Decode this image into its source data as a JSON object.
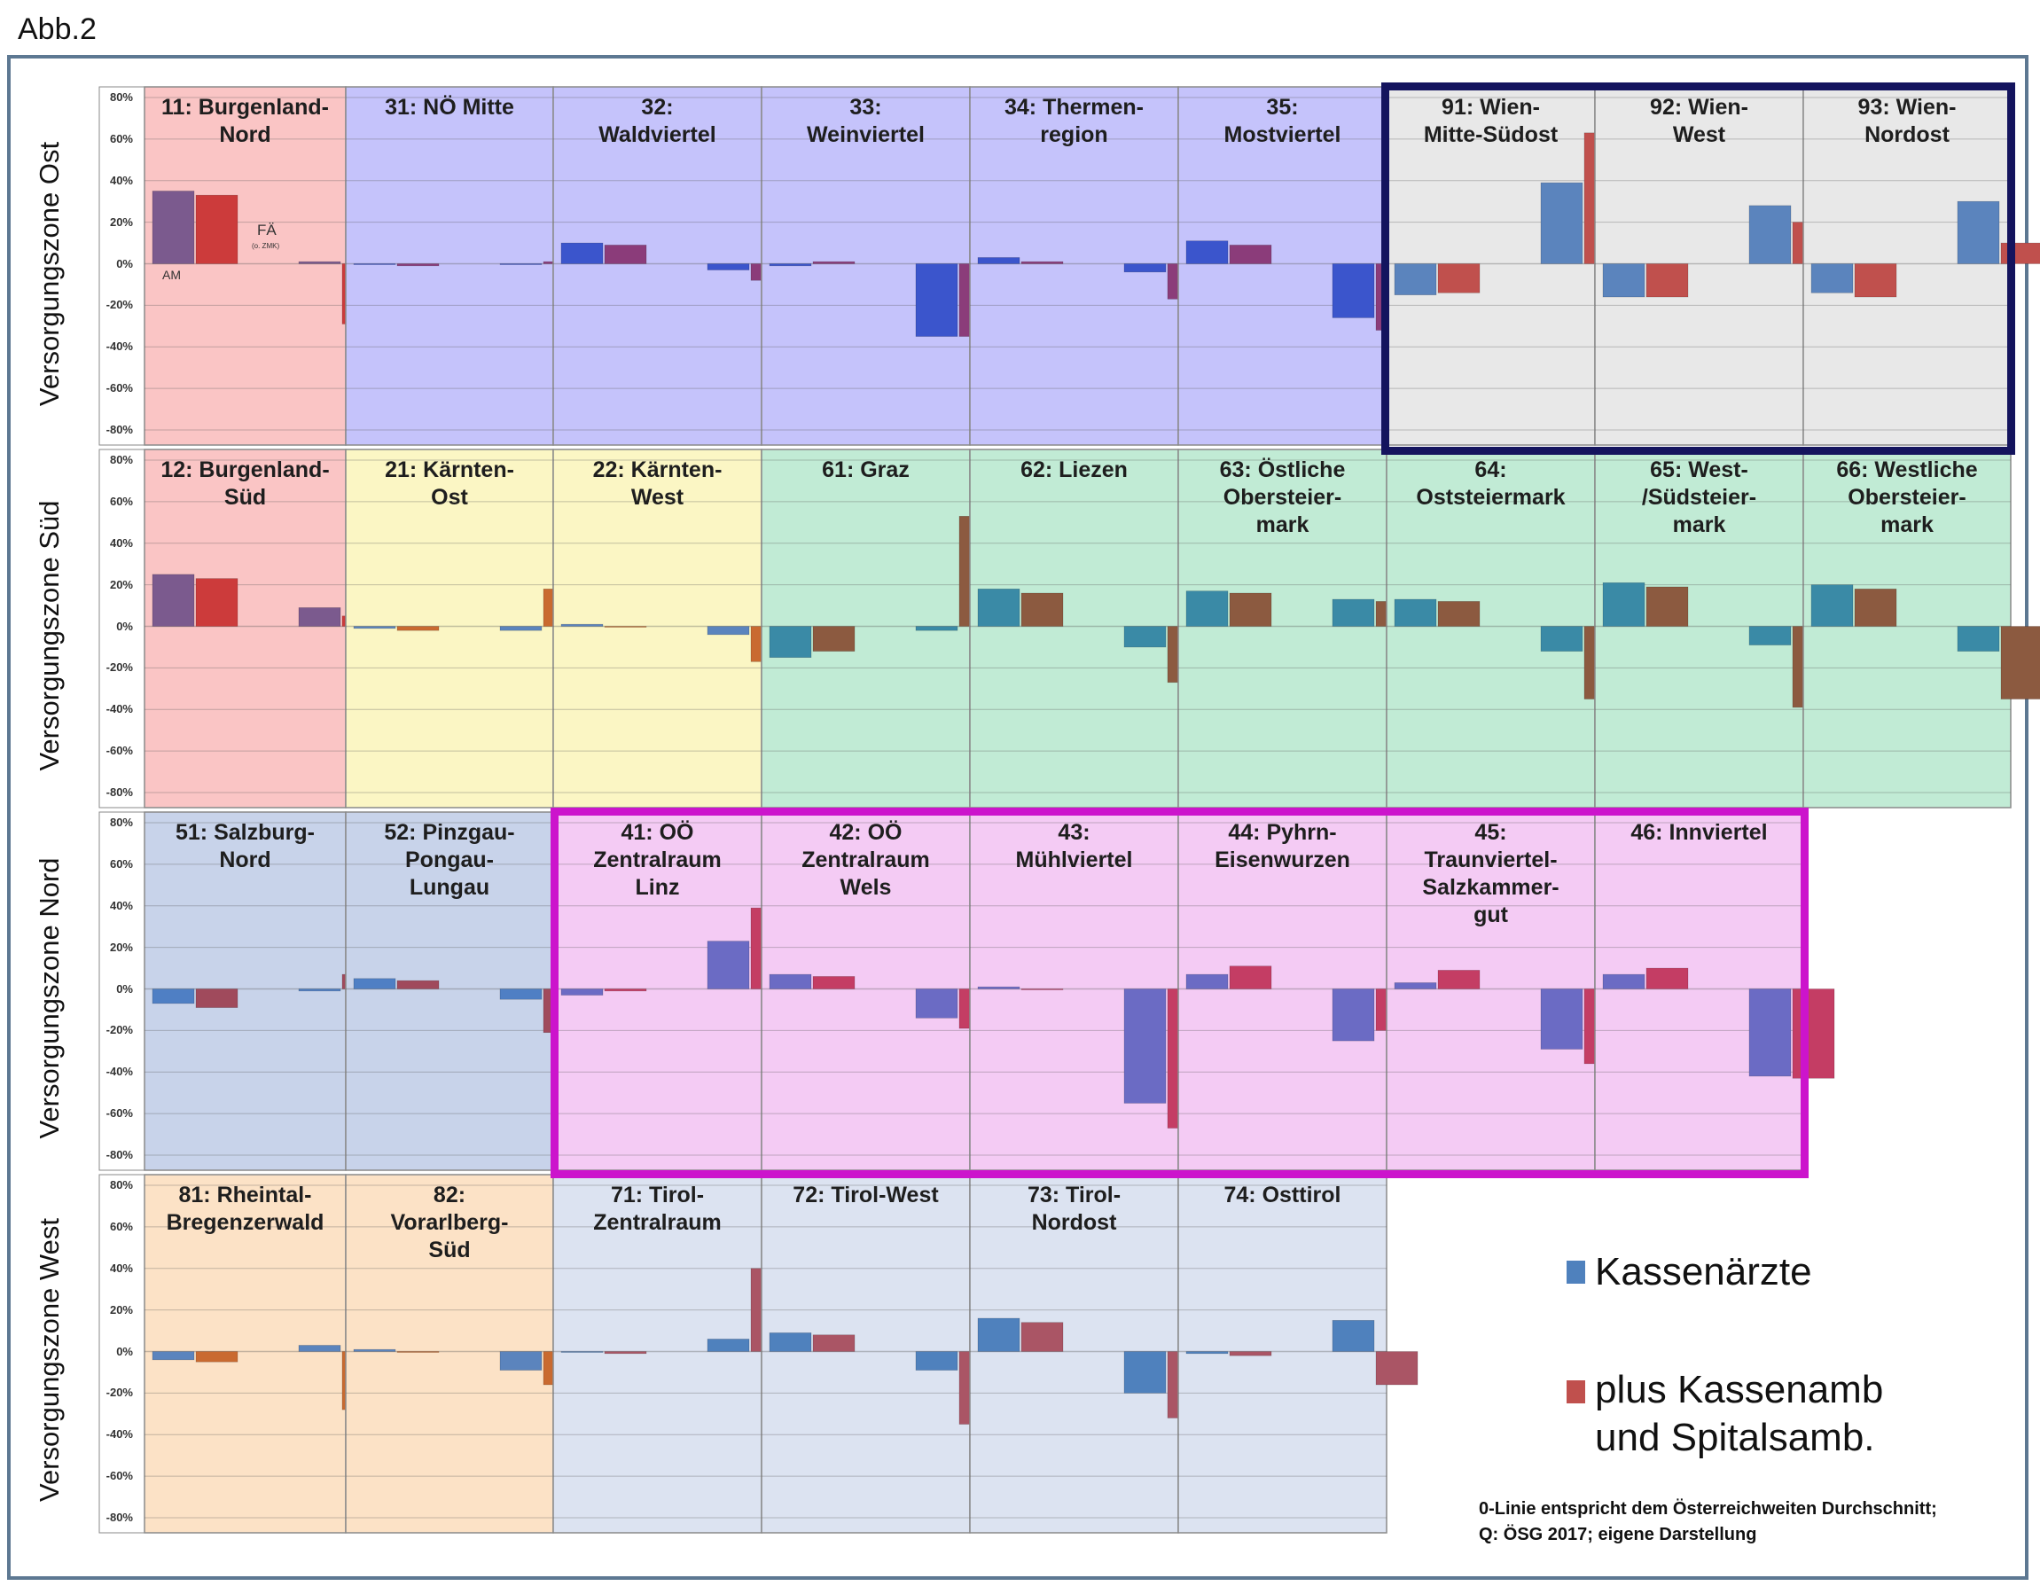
{
  "figure_label": "Abb.2",
  "y_ticks": [
    "80%",
    "60%",
    "40%",
    "20%",
    "0%",
    "-20%",
    "-40%",
    "-60%",
    "-80%"
  ],
  "zones": [
    {
      "label": "Versorgungszone Ost"
    },
    {
      "label": "Versorgungszone Süd"
    },
    {
      "label": "Versorgungszone Nord"
    },
    {
      "label": "Versorgungszone West"
    }
  ],
  "annotations": {
    "am": "AM",
    "fa": "FÄ",
    "fa_sub": "(o. ZMK)"
  },
  "legend": {
    "kassen": {
      "label": "Kassenärzte",
      "color": "#4f81bd"
    },
    "plus": {
      "label": "plus Kassenamb\nund Spitalsamb.",
      "color": "#c0504d"
    }
  },
  "note": "0-Linie entspricht dem Österreichweiten Durchschnitt;\nQ: ÖSG 2017; eigene Darstellung",
  "chart_data": {
    "type": "bar",
    "ylim": [
      -80,
      80
    ],
    "y_unit": "%",
    "series_names": [
      "Kassenärzte",
      "plus Kassenamb und Spitalsamb."
    ],
    "group_names": [
      "AM",
      "FÄ"
    ],
    "panels": [
      {
        "zone": 0,
        "col": 0,
        "title": "11: Burgenland-\nNord",
        "bg": "#fac5c5",
        "colors": [
          "#7b5a8e",
          "#cc3b3b"
        ],
        "values": [
          35,
          33,
          1,
          -29
        ]
      },
      {
        "zone": 0,
        "col": 1,
        "title": "31: NÖ Mitte",
        "bg": "#c5c3fb",
        "colors": [
          "#3b55cc",
          "#8b3c7a"
        ],
        "values": [
          0,
          -1,
          0,
          1
        ]
      },
      {
        "zone": 0,
        "col": 2,
        "title": "32:\nWaldviertel",
        "bg": "#c5c3fb",
        "colors": [
          "#3b55cc",
          "#8b3c7a"
        ],
        "values": [
          10,
          9,
          -3,
          -8
        ]
      },
      {
        "zone": 0,
        "col": 3,
        "title": "33:\nWeinviertel",
        "bg": "#c5c3fb",
        "colors": [
          "#3b55cc",
          "#8b3c7a"
        ],
        "values": [
          -1,
          1,
          -35,
          -35
        ]
      },
      {
        "zone": 0,
        "col": 4,
        "title": "34: Thermen-\nregion",
        "bg": "#c5c3fb",
        "colors": [
          "#3b55cc",
          "#8b3c7a"
        ],
        "values": [
          3,
          1,
          -4,
          -17
        ]
      },
      {
        "zone": 0,
        "col": 5,
        "title": "35:\nMostviertel",
        "bg": "#c5c3fb",
        "colors": [
          "#3b55cc",
          "#8b3c7a"
        ],
        "values": [
          11,
          9,
          -26,
          -32
        ]
      },
      {
        "zone": 0,
        "col": 6,
        "title": "91: Wien-\nMitte-Südost",
        "bg": "#e8e8e8",
        "colors": [
          "#5b84bd",
          "#c0504d"
        ],
        "values": [
          -15,
          -14,
          39,
          63
        ]
      },
      {
        "zone": 0,
        "col": 7,
        "title": "92: Wien-\nWest",
        "bg": "#e8e8e8",
        "colors": [
          "#5b84bd",
          "#c0504d"
        ],
        "values": [
          -16,
          -16,
          28,
          20
        ]
      },
      {
        "zone": 0,
        "col": 8,
        "title": "93: Wien-\nNordost",
        "bg": "#e8e8e8",
        "colors": [
          "#5b84bd",
          "#c0504d"
        ],
        "values": [
          -14,
          -16,
          30,
          10
        ]
      },
      {
        "zone": 1,
        "col": 0,
        "title": "12: Burgenland-\nSüd",
        "bg": "#fac5c5",
        "colors": [
          "#7b5a8e",
          "#cc3b3b"
        ],
        "values": [
          25,
          23,
          9,
          5
        ]
      },
      {
        "zone": 1,
        "col": 1,
        "title": "21: Kärnten-\nOst",
        "bg": "#fbf6c4",
        "colors": [
          "#5b84bd",
          "#c96a30"
        ],
        "values": [
          -1,
          -2,
          -2,
          18
        ]
      },
      {
        "zone": 1,
        "col": 2,
        "title": "22: Kärnten-\nWest",
        "bg": "#fbf6c4",
        "colors": [
          "#5b84bd",
          "#c96a30"
        ],
        "values": [
          1,
          0,
          -4,
          -17
        ]
      },
      {
        "zone": 1,
        "col": 3,
        "title": "61: Graz",
        "bg": "#c1ebd5",
        "colors": [
          "#3a8aa6",
          "#8c5a40"
        ],
        "values": [
          -15,
          -12,
          -2,
          53
        ]
      },
      {
        "zone": 1,
        "col": 4,
        "title": "62: Liezen",
        "bg": "#c1ebd5",
        "colors": [
          "#3a8aa6",
          "#8c5a40"
        ],
        "values": [
          18,
          16,
          -10,
          -27
        ]
      },
      {
        "zone": 1,
        "col": 5,
        "title": "63: Östliche\nObersteier-\nmark",
        "bg": "#c1ebd5",
        "colors": [
          "#3a8aa6",
          "#8c5a40"
        ],
        "values": [
          17,
          16,
          13,
          12
        ]
      },
      {
        "zone": 1,
        "col": 6,
        "title": "64:\nOststeiermark",
        "bg": "#c1ebd5",
        "colors": [
          "#3a8aa6",
          "#8c5a40"
        ],
        "values": [
          13,
          12,
          -12,
          -35
        ]
      },
      {
        "zone": 1,
        "col": 7,
        "title": "65: West-\n/Südsteier-\nmark",
        "bg": "#c1ebd5",
        "colors": [
          "#3a8aa6",
          "#8c5a40"
        ],
        "values": [
          21,
          19,
          -9,
          -39
        ]
      },
      {
        "zone": 1,
        "col": 8,
        "title": "66: Westliche\nObersteier-\nmark",
        "bg": "#c1ebd5",
        "colors": [
          "#3a8aa6",
          "#8c5a40"
        ],
        "values": [
          20,
          18,
          -12,
          -35
        ]
      },
      {
        "zone": 2,
        "col": 0,
        "title": "51: Salzburg-\nNord",
        "bg": "#c8d3ea",
        "colors": [
          "#4f7fc4",
          "#a04a5c"
        ],
        "values": [
          -7,
          -9,
          -1,
          7
        ]
      },
      {
        "zone": 2,
        "col": 1,
        "title": "52: Pinzgau-\nPongau-\nLungau",
        "bg": "#c8d3ea",
        "colors": [
          "#4f7fc4",
          "#a04a5c"
        ],
        "values": [
          5,
          4,
          -5,
          -21
        ]
      },
      {
        "zone": 2,
        "col": 2,
        "title": "41: OÖ\nZentralraum\nLinz",
        "bg": "#f4cbf4",
        "colors": [
          "#6b6bc4",
          "#c43d64"
        ],
        "values": [
          -3,
          -1,
          23,
          39
        ]
      },
      {
        "zone": 2,
        "col": 3,
        "title": "42: OÖ\nZentralraum\nWels",
        "bg": "#f4cbf4",
        "colors": [
          "#6b6bc4",
          "#c43d64"
        ],
        "values": [
          7,
          6,
          -14,
          -19
        ]
      },
      {
        "zone": 2,
        "col": 4,
        "title": "43:\nMühlviertel",
        "bg": "#f4cbf4",
        "colors": [
          "#6b6bc4",
          "#c43d64"
        ],
        "values": [
          1,
          0,
          -55,
          -67
        ]
      },
      {
        "zone": 2,
        "col": 5,
        "title": "44: Pyhrn-\nEisenwurzen",
        "bg": "#f4cbf4",
        "colors": [
          "#6b6bc4",
          "#c43d64"
        ],
        "values": [
          7,
          11,
          -25,
          -20
        ]
      },
      {
        "zone": 2,
        "col": 6,
        "title": "45:\nTraunviertel-\nSalzkammer-\ngut",
        "bg": "#f4cbf4",
        "colors": [
          "#6b6bc4",
          "#c43d64"
        ],
        "values": [
          3,
          9,
          -29,
          -36
        ]
      },
      {
        "zone": 2,
        "col": 7,
        "title": "46: Innviertel",
        "bg": "#f4cbf4",
        "colors": [
          "#6b6bc4",
          "#c43d64"
        ],
        "values": [
          7,
          10,
          -42,
          -43
        ]
      },
      {
        "zone": 3,
        "col": 0,
        "title": "81: Rheintal-\nBregenzerwald",
        "bg": "#fce2c6",
        "colors": [
          "#5b84bd",
          "#c96a30"
        ],
        "values": [
          -4,
          -5,
          3,
          -28
        ]
      },
      {
        "zone": 3,
        "col": 1,
        "title": "82:\nVorarlberg-\nSüd",
        "bg": "#fce2c6",
        "colors": [
          "#5b84bd",
          "#c96a30"
        ],
        "values": [
          1,
          0,
          -9,
          -16
        ]
      },
      {
        "zone": 3,
        "col": 2,
        "title": "71: Tirol-\nZentralraum",
        "bg": "#dce3f1",
        "colors": [
          "#4f81bd",
          "#aa5565"
        ],
        "values": [
          0,
          -1,
          6,
          40
        ]
      },
      {
        "zone": 3,
        "col": 3,
        "title": "72: Tirol-West",
        "bg": "#dce3f1",
        "colors": [
          "#4f81bd",
          "#aa5565"
        ],
        "values": [
          9,
          8,
          -9,
          -35
        ]
      },
      {
        "zone": 3,
        "col": 4,
        "title": "73: Tirol-\nNordost",
        "bg": "#dce3f1",
        "colors": [
          "#4f81bd",
          "#aa5565"
        ],
        "values": [
          16,
          14,
          -20,
          -32
        ]
      },
      {
        "zone": 3,
        "col": 5,
        "title": "74: Osttirol",
        "bg": "#dce3f1",
        "colors": [
          "#4f81bd",
          "#aa5565"
        ],
        "values": [
          -1,
          -2,
          15,
          -16
        ]
      }
    ]
  }
}
